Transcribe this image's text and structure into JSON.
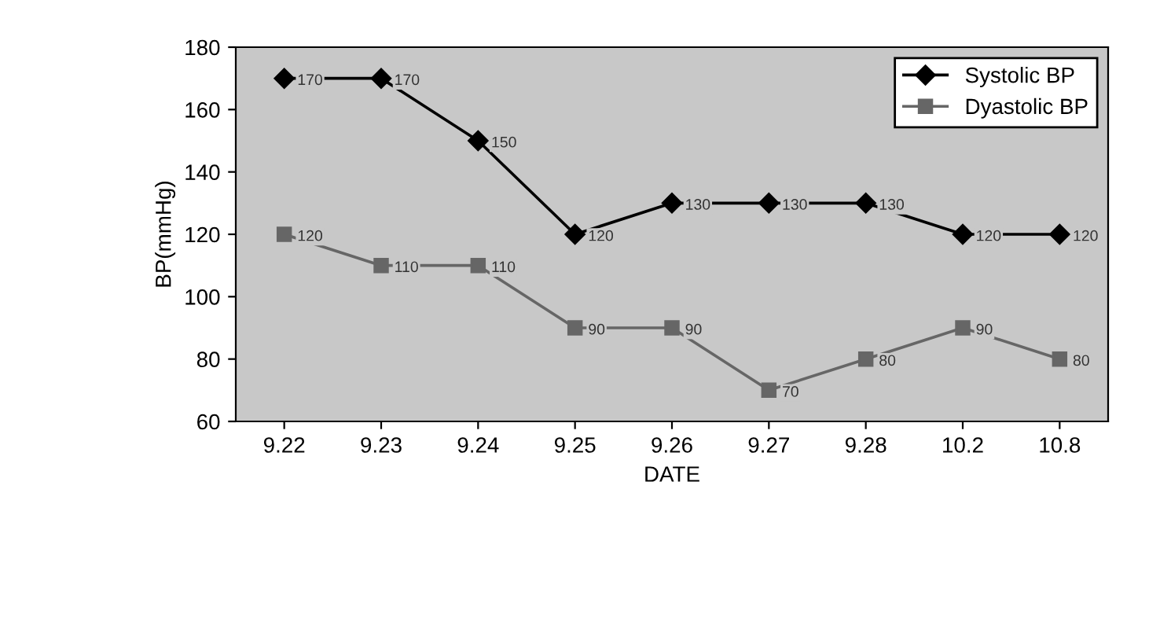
{
  "chart_data": {
    "type": "line",
    "xlabel": "DATE",
    "ylabel": "BP(mmHg)",
    "categories": [
      "9.22",
      "9.23",
      "9.24",
      "9.25",
      "9.26",
      "9.27",
      "9.28",
      "10.2",
      "10.8"
    ],
    "series": [
      {
        "name": "Systolic BP",
        "color": "#000000",
        "marker": "diamond",
        "values": [
          170,
          170,
          150,
          120,
          130,
          130,
          130,
          120,
          120
        ]
      },
      {
        "name": "Dyastolic BP",
        "color": "#666666",
        "marker": "square",
        "values": [
          120,
          110,
          110,
          90,
          90,
          70,
          80,
          90,
          80
        ]
      }
    ],
    "ylim": [
      60,
      180
    ],
    "yticks": [
      60,
      80,
      100,
      120,
      140,
      160,
      180
    ],
    "grid": false,
    "legend": "top right",
    "data_labels": true,
    "line_style": "solid"
  }
}
